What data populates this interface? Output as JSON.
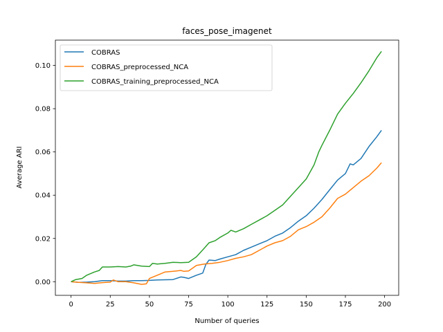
{
  "chart_data": {
    "type": "line",
    "title": "faces_pose_imagenet",
    "xlabel": "Number of queries",
    "ylabel": "Average ARI",
    "xlim": [
      -10,
      209
    ],
    "ylim": [
      -0.0063,
      0.1117
    ],
    "xticks": [
      0,
      25,
      50,
      75,
      100,
      125,
      150,
      175,
      200
    ],
    "yticks": [
      0.0,
      0.02,
      0.04,
      0.06,
      0.08,
      0.1
    ],
    "ytick_labels": [
      "0.00",
      "0.02",
      "0.04",
      "0.06",
      "0.08",
      "0.10"
    ],
    "grid": false,
    "legend_position": "upper-left",
    "series": [
      {
        "name": "COBRAS",
        "color": "#1f77b4",
        "points": [
          [
            0,
            0
          ],
          [
            5,
            -0.0003
          ],
          [
            10,
            -0.0002
          ],
          [
            15,
            0
          ],
          [
            20,
            0.0005
          ],
          [
            25,
            0.0005
          ],
          [
            30,
            0.0003
          ],
          [
            35,
            0.0003
          ],
          [
            40,
            0.0005
          ],
          [
            45,
            0.0005
          ],
          [
            50,
            0.0006
          ],
          [
            55,
            0.0008
          ],
          [
            60,
            0.0009
          ],
          [
            65,
            0.001
          ],
          [
            70,
            0.0022
          ],
          [
            72,
            0.002
          ],
          [
            75,
            0.0015
          ],
          [
            80,
            0.003
          ],
          [
            84,
            0.004
          ],
          [
            86,
            0.008
          ],
          [
            88,
            0.01
          ],
          [
            92,
            0.0098
          ],
          [
            95,
            0.0105
          ],
          [
            100,
            0.0115
          ],
          [
            105,
            0.0125
          ],
          [
            110,
            0.0145
          ],
          [
            115,
            0.016
          ],
          [
            120,
            0.0175
          ],
          [
            125,
            0.019
          ],
          [
            130,
            0.021
          ],
          [
            135,
            0.0225
          ],
          [
            140,
            0.025
          ],
          [
            145,
            0.028
          ],
          [
            150,
            0.0305
          ],
          [
            155,
            0.034
          ],
          [
            160,
            0.038
          ],
          [
            165,
            0.0425
          ],
          [
            170,
            0.047
          ],
          [
            175,
            0.05
          ],
          [
            178,
            0.0545
          ],
          [
            180,
            0.054
          ],
          [
            185,
            0.057
          ],
          [
            190,
            0.0625
          ],
          [
            195,
            0.067
          ],
          [
            198,
            0.07
          ]
        ]
      },
      {
        "name": "COBRAS_preprocessed_NCA",
        "color": "#ff7f0e",
        "points": [
          [
            0,
            0
          ],
          [
            5,
            -0.0003
          ],
          [
            10,
            -0.0005
          ],
          [
            15,
            -0.0008
          ],
          [
            20,
            -0.0004
          ],
          [
            25,
            -0.0002
          ],
          [
            27,
            0.0008
          ],
          [
            30,
            0
          ],
          [
            35,
            0
          ],
          [
            40,
            -0.0005
          ],
          [
            45,
            -0.0012
          ],
          [
            48,
            -0.001
          ],
          [
            50,
            0.0015
          ],
          [
            55,
            0.003
          ],
          [
            60,
            0.0045
          ],
          [
            65,
            0.0048
          ],
          [
            70,
            0.0052
          ],
          [
            72,
            0.0048
          ],
          [
            75,
            0.005
          ],
          [
            80,
            0.0075
          ],
          [
            85,
            0.0082
          ],
          [
            90,
            0.0085
          ],
          [
            95,
            0.009
          ],
          [
            100,
            0.0098
          ],
          [
            105,
            0.0108
          ],
          [
            110,
            0.0115
          ],
          [
            115,
            0.0125
          ],
          [
            120,
            0.0145
          ],
          [
            125,
            0.0165
          ],
          [
            130,
            0.018
          ],
          [
            135,
            0.019
          ],
          [
            140,
            0.021
          ],
          [
            145,
            0.024
          ],
          [
            150,
            0.0255
          ],
          [
            155,
            0.0275
          ],
          [
            160,
            0.03
          ],
          [
            165,
            0.034
          ],
          [
            170,
            0.0385
          ],
          [
            175,
            0.0405
          ],
          [
            180,
            0.0435
          ],
          [
            185,
            0.0465
          ],
          [
            190,
            0.049
          ],
          [
            195,
            0.0525
          ],
          [
            198,
            0.055
          ]
        ]
      },
      {
        "name": "COBRAS_training_preprocessed_NCA",
        "color": "#2ca02c",
        "points": [
          [
            0,
            0
          ],
          [
            3,
            0.001
          ],
          [
            7,
            0.0015
          ],
          [
            10,
            0.003
          ],
          [
            15,
            0.0045
          ],
          [
            18,
            0.0052
          ],
          [
            20,
            0.0068
          ],
          [
            25,
            0.0068
          ],
          [
            30,
            0.007
          ],
          [
            35,
            0.0068
          ],
          [
            38,
            0.0072
          ],
          [
            40,
            0.0078
          ],
          [
            45,
            0.0072
          ],
          [
            50,
            0.007
          ],
          [
            52,
            0.0085
          ],
          [
            55,
            0.0082
          ],
          [
            60,
            0.0085
          ],
          [
            65,
            0.009
          ],
          [
            70,
            0.0088
          ],
          [
            75,
            0.009
          ],
          [
            80,
            0.0115
          ],
          [
            85,
            0.0155
          ],
          [
            88,
            0.018
          ],
          [
            92,
            0.019
          ],
          [
            95,
            0.0205
          ],
          [
            100,
            0.0225
          ],
          [
            102,
            0.0238
          ],
          [
            105,
            0.023
          ],
          [
            110,
            0.0245
          ],
          [
            115,
            0.0265
          ],
          [
            120,
            0.0285
          ],
          [
            125,
            0.0305
          ],
          [
            130,
            0.033
          ],
          [
            135,
            0.0355
          ],
          [
            140,
            0.0395
          ],
          [
            145,
            0.0435
          ],
          [
            150,
            0.0475
          ],
          [
            155,
            0.054
          ],
          [
            158,
            0.06
          ],
          [
            160,
            0.063
          ],
          [
            165,
            0.07
          ],
          [
            170,
            0.0775
          ],
          [
            175,
            0.0825
          ],
          [
            180,
            0.087
          ],
          [
            185,
            0.092
          ],
          [
            190,
            0.0975
          ],
          [
            195,
            0.1035
          ],
          [
            198,
            0.1065
          ]
        ]
      }
    ]
  }
}
